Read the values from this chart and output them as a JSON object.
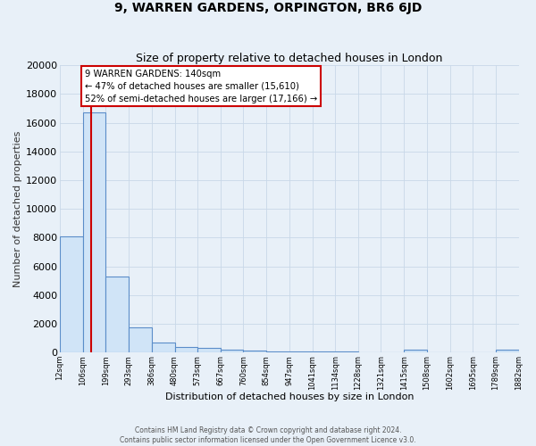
{
  "title": "9, WARREN GARDENS, ORPINGTON, BR6 6JD",
  "subtitle": "Size of property relative to detached houses in London",
  "xlabel": "Distribution of detached houses by size in London",
  "ylabel": "Number of detached properties",
  "bin_edges": [
    12,
    106,
    199,
    293,
    386,
    480,
    573,
    667,
    760,
    854,
    947,
    1041,
    1134,
    1228,
    1321,
    1415,
    1508,
    1602,
    1695,
    1789,
    1882
  ],
  "bar_heights": [
    8100,
    16700,
    5300,
    1750,
    700,
    400,
    300,
    180,
    130,
    90,
    80,
    70,
    60,
    50,
    45,
    180,
    40,
    30,
    25,
    190
  ],
  "bar_fill_color": "#d0e4f7",
  "bar_edge_color": "#5b8dc9",
  "red_line_x": 140,
  "annotation_text": "9 WARREN GARDENS: 140sqm\n← 47% of detached houses are smaller (15,610)\n52% of semi-detached houses are larger (17,166) →",
  "annotation_box_facecolor": "#ffffff",
  "annotation_border_color": "#cc0000",
  "ylim": [
    0,
    20000
  ],
  "yticks": [
    0,
    2000,
    4000,
    6000,
    8000,
    10000,
    12000,
    14000,
    16000,
    18000,
    20000
  ],
  "xtick_labels": [
    "12sqm",
    "106sqm",
    "199sqm",
    "293sqm",
    "386sqm",
    "480sqm",
    "573sqm",
    "667sqm",
    "760sqm",
    "854sqm",
    "947sqm",
    "1041sqm",
    "1134sqm",
    "1228sqm",
    "1321sqm",
    "1415sqm",
    "1508sqm",
    "1602sqm",
    "1695sqm",
    "1789sqm",
    "1882sqm"
  ],
  "footer_line1": "Contains HM Land Registry data © Crown copyright and database right 2024.",
  "footer_line2": "Contains public sector information licensed under the Open Government Licence v3.0.",
  "background_color": "#e8f0f8",
  "grid_color": "#c8d8e8",
  "title_fontsize": 10,
  "subtitle_fontsize": 9
}
